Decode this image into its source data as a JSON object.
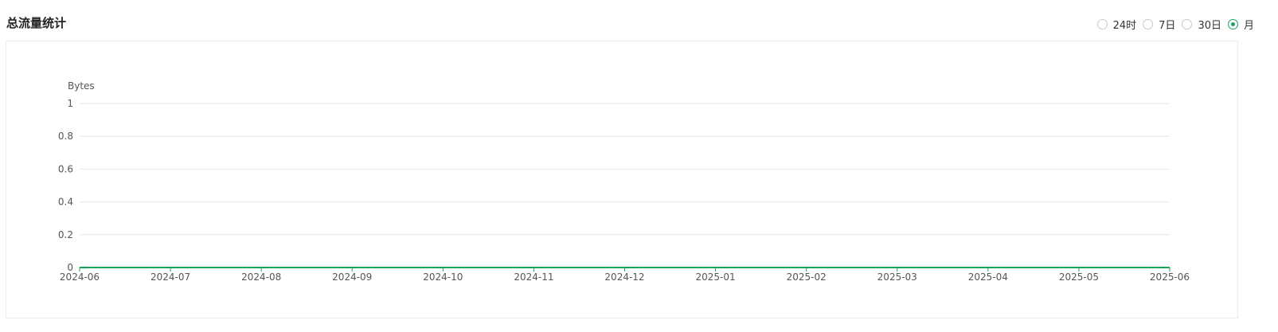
{
  "title": "总流量统计",
  "range_options": [
    {
      "label": "24时",
      "checked": false
    },
    {
      "label": "7日",
      "checked": false
    },
    {
      "label": "30日",
      "checked": false
    },
    {
      "label": "月",
      "checked": true
    }
  ],
  "colors": {
    "accent": "#1aa35a",
    "grid": "#e6e6e6",
    "line": "#1aa35a"
  },
  "chart_data": {
    "type": "line",
    "ylabel": "Bytes",
    "ylim": [
      0,
      1
    ],
    "y_ticks": [
      "0",
      "0.2",
      "0.4",
      "0.6",
      "0.8",
      "1"
    ],
    "x": [
      "2024-06",
      "2024-07",
      "2024-08",
      "2024-09",
      "2024-10",
      "2024-11",
      "2024-12",
      "2025-01",
      "2025-02",
      "2025-03",
      "2025-04",
      "2025-05",
      "2025-06"
    ],
    "series": [
      {
        "values": [
          0,
          0,
          0,
          0,
          0,
          0,
          0,
          0,
          0,
          0,
          0,
          0,
          0
        ]
      }
    ],
    "grid": true
  }
}
